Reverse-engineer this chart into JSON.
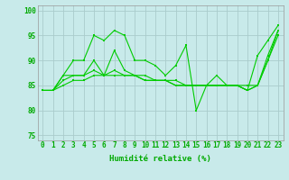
{
  "x": [
    0,
    1,
    2,
    3,
    4,
    5,
    6,
    7,
    8,
    9,
    10,
    11,
    12,
    13,
    14,
    15,
    16,
    17,
    18,
    19,
    20,
    21,
    22,
    23
  ],
  "series": [
    [
      84,
      84,
      87,
      90,
      90,
      95,
      94,
      96,
      95,
      90,
      90,
      89,
      87,
      89,
      93,
      80,
      85,
      87,
      85,
      85,
      84,
      91,
      94,
      97
    ],
    [
      84,
      84,
      87,
      87,
      87,
      90,
      87,
      92,
      88,
      87,
      87,
      86,
      86,
      85,
      85,
      85,
      85,
      85,
      85,
      85,
      84,
      85,
      91,
      96
    ],
    [
      84,
      84,
      86,
      87,
      87,
      88,
      87,
      88,
      87,
      87,
      86,
      86,
      86,
      85,
      85,
      85,
      85,
      85,
      85,
      85,
      85,
      85,
      90,
      96
    ],
    [
      84,
      84,
      85,
      86,
      86,
      87,
      87,
      87,
      87,
      87,
      86,
      86,
      86,
      86,
      85,
      85,
      85,
      85,
      85,
      85,
      84,
      85,
      90,
      95
    ]
  ],
  "line_color": "#00cc00",
  "marker_color": "#00cc00",
  "bg_color": "#c8eaea",
  "grid_color": "#aacccc",
  "axis_color": "#00aa00",
  "xlabel": "Humidité relative (%)",
  "ylim": [
    74,
    101
  ],
  "yticks": [
    75,
    80,
    85,
    90,
    95,
    100
  ],
  "xticks": [
    0,
    1,
    2,
    3,
    4,
    5,
    6,
    7,
    8,
    9,
    10,
    11,
    12,
    13,
    14,
    15,
    16,
    17,
    18,
    19,
    20,
    21,
    22,
    23
  ],
  "tick_fontsize": 5.5,
  "label_fontsize": 6.5
}
